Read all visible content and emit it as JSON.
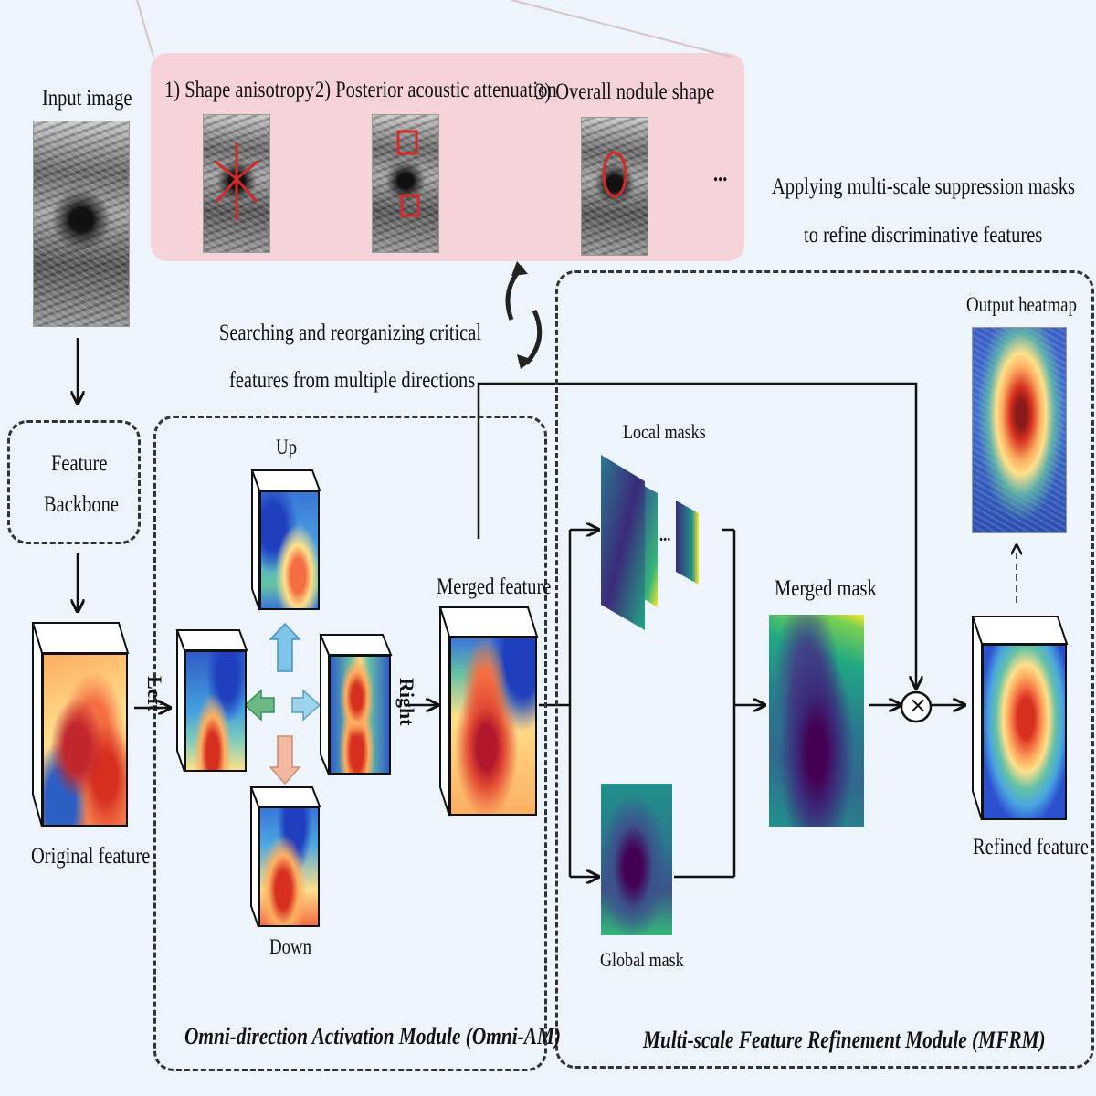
{
  "labels": {
    "input_image": "Input image",
    "feature_backbone_line1": "Feature",
    "feature_backbone_line2": "Backbone",
    "original_feature": "Original feature",
    "shape_anisotropy": "1) Shape anisotropy",
    "posterior": "2) Posterior acoustic attenuation",
    "overall": "3) Overall nodule shape",
    "ellipsis": "...",
    "applying_line1": "Applying multi-scale suppression masks",
    "applying_line2": "to refine discriminative features",
    "searching_line1": "Searching and reorganizing critical",
    "searching_line2": "features from multiple directions",
    "up": "Up",
    "down": "Down",
    "left": "Left",
    "right": "Right",
    "merged_feature": "Merged feature",
    "local_masks": "Local masks",
    "local_ellipsis": "...",
    "global_mask": "Global mask",
    "merged_mask": "Merged mask",
    "output_heatmap": "Output heatmap",
    "refined_feature": "Refined feature",
    "multiply": "×",
    "omni_module": "Omni-direction Activation Module (Omni-AM)",
    "mfrm_module": "Multi-scale Feature Refinement Module (MFRM)"
  },
  "colors": {
    "background": "#eef4fb",
    "pink_panel": "#f5d3d9",
    "arrow_up": "#7fc4ea",
    "arrow_left": "#6ab985",
    "arrow_right": "#9fd3ec",
    "arrow_down": "#f2b8a0"
  }
}
